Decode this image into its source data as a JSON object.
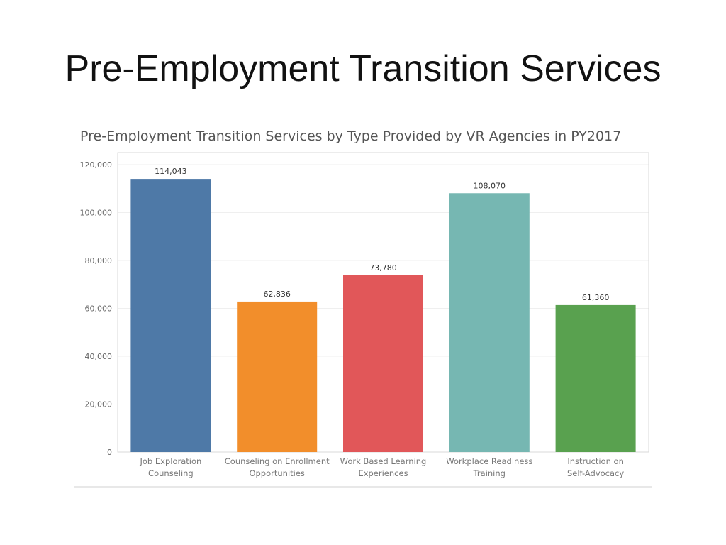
{
  "slide": {
    "title": "Pre-Employment Transition Services"
  },
  "chart_data": {
    "type": "bar",
    "title": "Pre-Employment Transition Services by Type Provided by VR Agencies in PY2017",
    "xlabel": "",
    "ylabel": "",
    "ylim": [
      0,
      120000
    ],
    "yticks": [
      {
        "value": 0,
        "label": "0"
      },
      {
        "value": 20000,
        "label": "20,000"
      },
      {
        "value": 40000,
        "label": "40,000"
      },
      {
        "value": 60000,
        "label": "60,000"
      },
      {
        "value": 80000,
        "label": "80,000"
      },
      {
        "value": 100000,
        "label": "100,000"
      },
      {
        "value": 120000,
        "label": "120,000"
      }
    ],
    "grid": true,
    "legend": "none",
    "categories": [
      [
        "Job Exploration",
        "Counseling"
      ],
      [
        "Counseling on Enrollment",
        "Opportunities"
      ],
      [
        "Work Based Learning",
        "Experiences"
      ],
      [
        "Workplace Readiness",
        "Training"
      ],
      [
        "Instruction on",
        "Self-Advocacy"
      ]
    ],
    "values": [
      114043,
      62836,
      73780,
      108070,
      61360
    ],
    "value_labels": [
      "114,043",
      "62,836",
      "73,780",
      "108,070",
      "61,360"
    ],
    "colors": [
      "#4e79a7",
      "#f28e2b",
      "#e15759",
      "#76b7b2",
      "#59a14f"
    ]
  }
}
